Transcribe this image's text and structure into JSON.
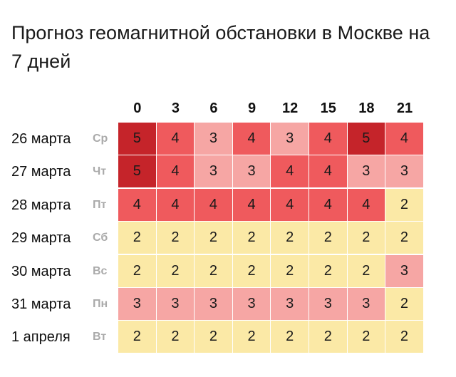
{
  "title": "Прогноз геомагнитной обстановки в Москве на 7 дней",
  "hours": [
    "0",
    "3",
    "6",
    "9",
    "12",
    "15",
    "18",
    "21"
  ],
  "rows": [
    {
      "date": "26 марта",
      "dow": "Ср",
      "values": [
        5,
        4,
        3,
        4,
        3,
        4,
        5,
        4
      ]
    },
    {
      "date": "27 марта",
      "dow": "Чт",
      "values": [
        5,
        4,
        3,
        3,
        4,
        4,
        3,
        3
      ]
    },
    {
      "date": "28 марта",
      "dow": "Пт",
      "values": [
        4,
        4,
        4,
        4,
        4,
        4,
        4,
        2
      ]
    },
    {
      "date": "29 марта",
      "dow": "Сб",
      "values": [
        2,
        2,
        2,
        2,
        2,
        2,
        2,
        2
      ]
    },
    {
      "date": "30 марта",
      "dow": "Вс",
      "values": [
        2,
        2,
        2,
        2,
        2,
        2,
        2,
        3
      ]
    },
    {
      "date": "31 марта",
      "dow": "Пн",
      "values": [
        3,
        3,
        3,
        3,
        3,
        3,
        3,
        2
      ]
    },
    {
      "date": "1 апреля",
      "dow": "Вт",
      "values": [
        2,
        2,
        2,
        2,
        2,
        2,
        2,
        2
      ]
    }
  ],
  "colors": {
    "2": "#fbe9a6",
    "3": "#f6a6a4",
    "4": "#ef5a5d",
    "5": "#c5242a"
  }
}
